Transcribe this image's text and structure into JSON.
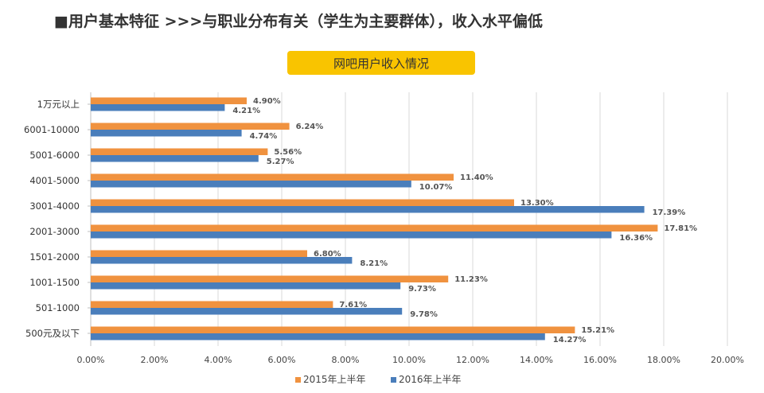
{
  "page": {
    "title": "■用户基本特征  >>>与职业分布有关（学生为主要群体），收入水平偏低"
  },
  "chart_data": {
    "type": "bar",
    "orientation": "horizontal",
    "title": "网吧用户收入情况",
    "categories": [
      "1万元以上",
      "6001-10000",
      "5001-6000",
      "4001-5000",
      "3001-4000",
      "2001-3000",
      "1501-2000",
      "1001-1500",
      "501-1000",
      "500元及以下"
    ],
    "series": [
      {
        "name": "2015年上半年",
        "color": "#f0923f",
        "values": [
          4.9,
          6.24,
          5.56,
          11.4,
          13.3,
          17.81,
          6.8,
          11.23,
          7.61,
          15.21
        ],
        "labels": [
          "4.90%",
          "6.24%",
          "5.56%",
          "11.40%",
          "13.30%",
          "17.81%",
          "6.80%",
          "11.23%",
          "7.61%",
          "15.21%"
        ]
      },
      {
        "name": "2016年上半年",
        "color": "#4a7ebb",
        "values": [
          4.21,
          4.74,
          5.27,
          10.07,
          17.39,
          16.36,
          8.21,
          9.73,
          9.78,
          14.27
        ],
        "labels": [
          "4.21%",
          "4.74%",
          "5.27%",
          "10.07%",
          "17.39%",
          "16.36%",
          "8.21%",
          "9.73%",
          "9.78%",
          "14.27%"
        ]
      }
    ],
    "xlim": [
      0,
      20
    ],
    "xticks": [
      "0.00%",
      "2.00%",
      "4.00%",
      "6.00%",
      "8.00%",
      "10.00%",
      "12.00%",
      "14.00%",
      "16.00%",
      "18.00%",
      "20.00%"
    ],
    "grid": true,
    "legend": "bottom"
  }
}
